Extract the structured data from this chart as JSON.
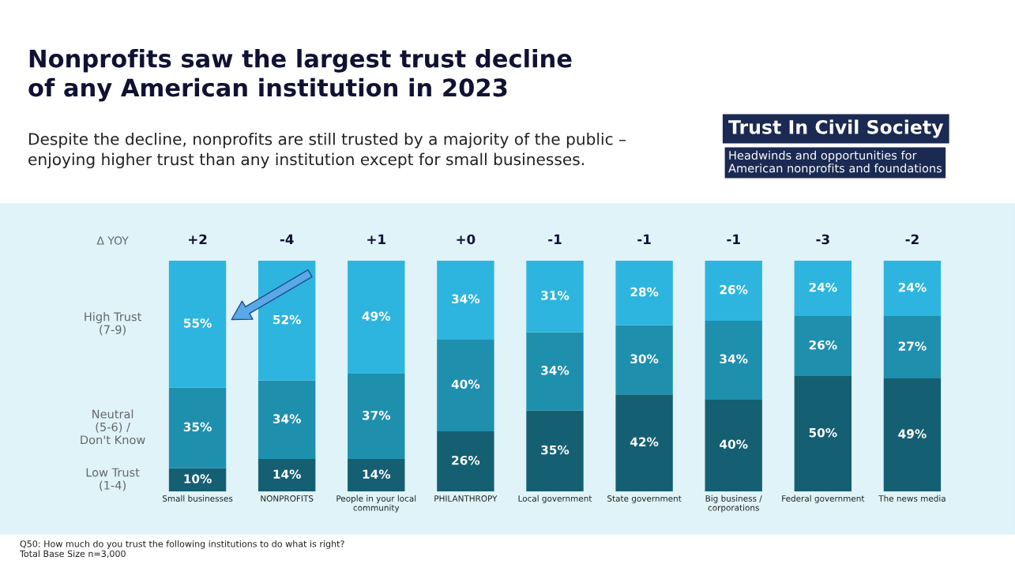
{
  "chart_data": {
    "type": "bar",
    "stacked": true,
    "title": "Nonprofits saw the largest trust decline\nof any American institution in 2023",
    "subtitle": "Despite the decline, nonprofits are still trusted by a majority of the public –\nenjoying higher trust than any institution except for small businesses.",
    "categories": [
      "Small businesses",
      "NONPROFITS",
      "People in your local\ncommunity",
      "PHILANTHROPY",
      "Local government",
      "State government",
      "Big business /\ncorporations",
      "Federal government",
      "The news media"
    ],
    "series": [
      {
        "name": "Low Trust\n(1-4)",
        "color": "#155f73",
        "values": [
          10,
          14,
          14,
          26,
          35,
          42,
          40,
          50,
          49
        ],
        "value_labels": [
          "10%",
          "14%",
          "14%",
          "26%",
          "35%",
          "42%",
          "40%",
          "50%",
          "49%"
        ]
      },
      {
        "name": "Neutral\n(5-6) /\nDon't Know",
        "color": "#1f8fae",
        "values": [
          35,
          34,
          37,
          40,
          34,
          30,
          34,
          26,
          27
        ],
        "value_labels": [
          "35%",
          "34%",
          "37%",
          "40%",
          "34%",
          "30%",
          "34%",
          "26%",
          "27%"
        ]
      },
      {
        "name": "High Trust\n(7-9)",
        "color": "#2db5df",
        "values": [
          55,
          52,
          49,
          34,
          31,
          28,
          26,
          24,
          24
        ],
        "value_labels": [
          "55%",
          "52%",
          "49%",
          "34%",
          "31%",
          "28%",
          "26%",
          "24%",
          "24%"
        ]
      }
    ],
    "ylim": [
      0,
      100
    ],
    "tick_labels": "x",
    "legend": false,
    "grid": false,
    "annotations": [
      "+2",
      "-4",
      "+1",
      "+0",
      "-1",
      "-1",
      "-1",
      "-3",
      "-2",
      "Δ YOY",
      "Trust In Civil Society",
      "Headwinds and opportunities for\nAmerican nonprofits and foundations",
      "Q50: How much do you trust the following institutions to do what is right?\nTotal Base Size n=3,000"
    ]
  }
}
